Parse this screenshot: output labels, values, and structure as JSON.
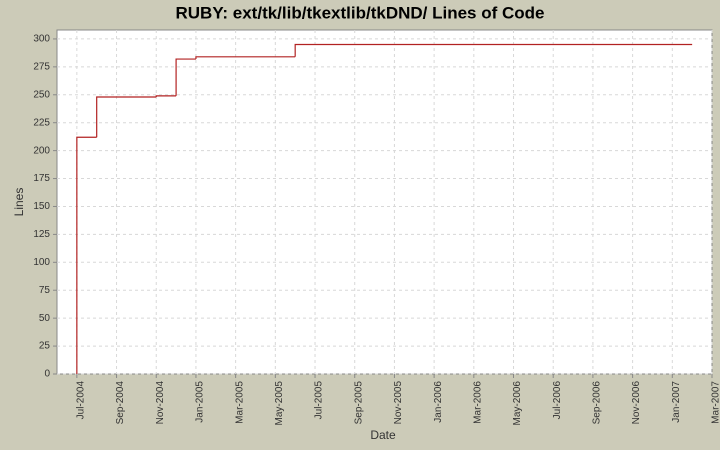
{
  "chart_data": {
    "type": "step",
    "title": "RUBY: ext/tk/lib/tkextlib/tkDND/ Lines of Code",
    "x_label": "Date",
    "y_label": "Lines",
    "x": [
      "2004-07",
      "2004-07",
      "2004-08",
      "2004-11",
      "2004-12",
      "2005-01",
      "2005-06",
      "2007-02"
    ],
    "series": [
      {
        "name": "Lines",
        "color": "#b22222",
        "values": [
          0,
          212,
          248,
          249,
          282,
          284,
          295,
          295
        ]
      }
    ],
    "xlim": [
      "2004-06",
      "2007-03"
    ],
    "xticks": [
      {
        "value": "2004-07",
        "label": "Jul-2004"
      },
      {
        "value": "2004-09",
        "label": "Sep-2004"
      },
      {
        "value": "2004-11",
        "label": "Nov-2004"
      },
      {
        "value": "2005-01",
        "label": "Jan-2005"
      },
      {
        "value": "2005-03",
        "label": "Mar-2005"
      },
      {
        "value": "2005-05",
        "label": "May-2005"
      },
      {
        "value": "2005-07",
        "label": "Jul-2005"
      },
      {
        "value": "2005-09",
        "label": "Sep-2005"
      },
      {
        "value": "2005-11",
        "label": "Nov-2005"
      },
      {
        "value": "2006-01",
        "label": "Jan-2006"
      },
      {
        "value": "2006-03",
        "label": "Mar-2006"
      },
      {
        "value": "2006-05",
        "label": "May-2006"
      },
      {
        "value": "2006-07",
        "label": "Jul-2006"
      },
      {
        "value": "2006-09",
        "label": "Sep-2006"
      },
      {
        "value": "2006-11",
        "label": "Nov-2006"
      },
      {
        "value": "2007-01",
        "label": "Jan-2007"
      },
      {
        "value": "2007-03",
        "label": "Mar-2007"
      }
    ],
    "ylim": [
      0,
      308
    ],
    "yticks": [
      0,
      25,
      50,
      75,
      100,
      125,
      150,
      175,
      200,
      225,
      250,
      275,
      300
    ],
    "grid": true
  }
}
